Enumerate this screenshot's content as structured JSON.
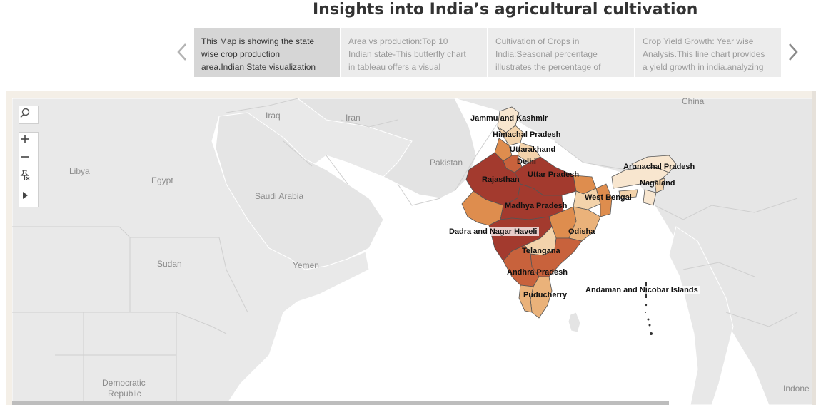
{
  "title": "Insights into India’s agricultural cultivation",
  "story": {
    "prev_icon": "chevron-left-icon",
    "next_icon": "chevron-right-icon",
    "cards": [
      {
        "line1": "This Map is showing the state",
        "line2": "wise crop production",
        "line3": "area.Indian State visualization"
      },
      {
        "line1": "Area vs production:Top 10",
        "line2": "Indian state-This butterfly chart",
        "line3": "in tableau offers a visual"
      },
      {
        "line1": "Cultivation of Crops in",
        "line2": "India:Seasonal percentage",
        "line3": "illustrates the percentage of"
      },
      {
        "line1": "Crop Yield Growth: Year wise",
        "line2": "Analysis.This line chart provides",
        "line3": "a yield growth in india.analyzing"
      }
    ]
  },
  "map_controls": {
    "search_icon": "search-icon",
    "zoom_in_icon": "plus-icon",
    "zoom_out_icon": "minus-icon",
    "pin_icon": "pin-icon",
    "expand_icon": "play-icon"
  },
  "countries": {
    "china": "China",
    "iraq": "Iraq",
    "iran": "Iran",
    "pakistan": "Pakistan",
    "libya": "Libya",
    "egypt": "Egypt",
    "saudi_arabia": "Saudi Arabia",
    "sudan": "Sudan",
    "yemen": "Yemen",
    "drc_line1": "Democratic",
    "drc_line2": "Republic",
    "indonesia": "Indone"
  },
  "states": {
    "jammu_kashmir": "Jammu and Kashmir",
    "himachal": "Himachal Pradesh",
    "uttarakhand": "Uttarakhand",
    "delhi": "Delhi",
    "rajasthan": "Rajasthan",
    "uttar_pradesh": "Uttar Pradesh",
    "arunachal": "Arunachal Pradesh",
    "nagaland": "Nagaland",
    "west_bengal": "West Bengal",
    "madhya_pradesh": "Madhya Pradesh",
    "dadra": "Dadra and Nagar Haveli",
    "odisha": "Odisha",
    "telangana": "Telangana",
    "andhra": "Andhra Pradesh",
    "puducherry": "Puducherry",
    "andaman": "Andaman and Nicobar Islands"
  },
  "colors": {
    "high": "#a33a2e",
    "mid_high": "#c8623c",
    "mid": "#de8d4e",
    "mid_low": "#eab27a",
    "low": "#f3d3ab",
    "lowest": "#f8e6cf"
  }
}
